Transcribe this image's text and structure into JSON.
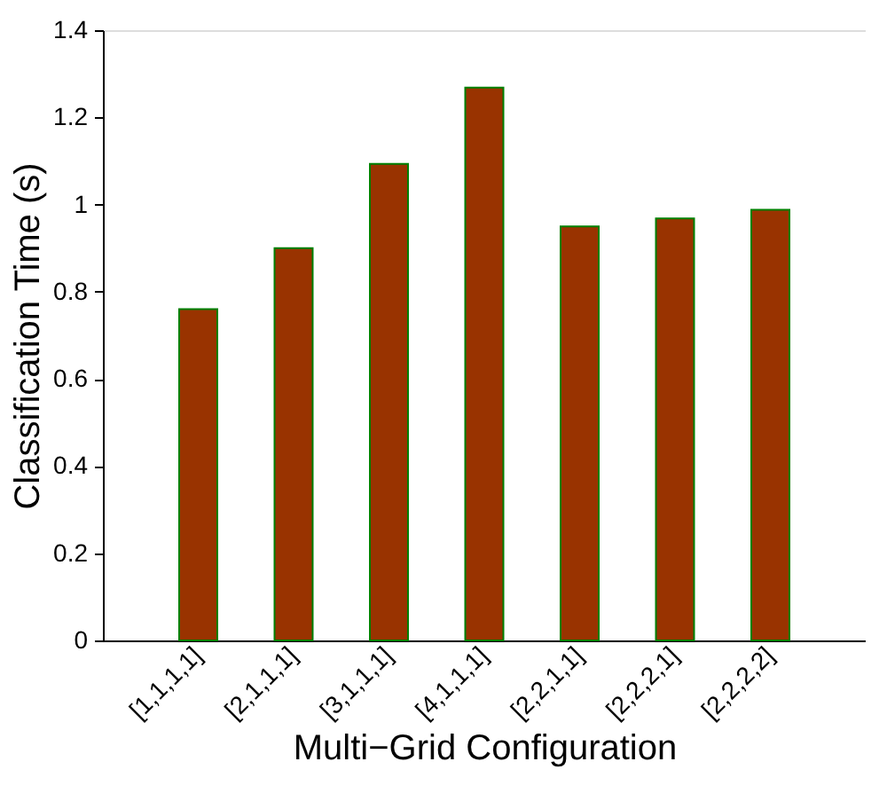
{
  "chart_data": {
    "type": "bar",
    "xlabel": "Multi−Grid Configuration",
    "ylabel": "Classification Time (s)",
    "categories": [
      "[1,1,1,1]",
      "[2,1,1,1]",
      "[3,1,1,1]",
      "[4,1,1,1]",
      "[2,2,1,1]",
      "[2,2,2,1]",
      "[2,2,2,2]"
    ],
    "values": [
      0.76,
      0.9,
      1.093,
      1.268,
      0.95,
      0.968,
      0.988
    ],
    "color": "#993300",
    "ylim": [
      0,
      1.4
    ],
    "yticks": [
      0,
      0.2,
      0.4,
      0.6,
      0.8,
      1,
      1.2,
      1.4
    ],
    "grid": false
  }
}
